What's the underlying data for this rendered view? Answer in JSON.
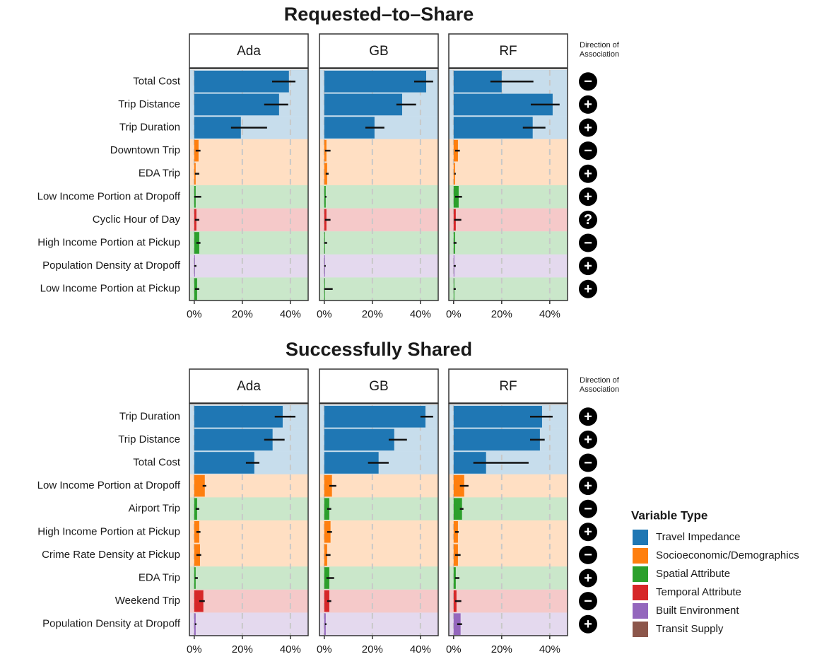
{
  "chart_data": [
    {
      "type": "bar",
      "title": "Requested–to–Share",
      "categories": [
        "Total Cost",
        "Trip Distance",
        "Trip Duration",
        "Downtown Trip",
        "EDA Trip",
        "Low Income Portion at Dropoff",
        "Cyclic Hour of Day",
        "High Income Portion at Pickup",
        "Population Density at Dropoff",
        "Low Income Portion at Pickup"
      ],
      "colors": [
        "#1f77b4",
        "#1f77b4",
        "#1f77b4",
        "#ff7f0e",
        "#ff7f0e",
        "#2ca02c",
        "#d62728",
        "#2ca02c",
        "#9467bd",
        "#2ca02c"
      ],
      "direction_label": [
        "Direction of",
        "Association"
      ],
      "direction": [
        "−",
        "+",
        "+",
        "−",
        "+",
        "+",
        "?",
        "−",
        "+",
        "+"
      ],
      "xlim": [
        -2,
        47.4
      ],
      "xticks": [
        {
          "value": 0,
          "label": "0%"
        },
        {
          "value": 20,
          "label": "20%"
        },
        {
          "value": 40,
          "label": "40%"
        }
      ],
      "series": [
        {
          "name": "Ada",
          "values": [
            39.4,
            35.3,
            19.4,
            1.8,
            0.6,
            0.6,
            0.9,
            2.1,
            0.3,
            1.2
          ],
          "ci": [
            [
              32.4,
              42.1
            ],
            [
              29.1,
              39.1
            ],
            [
              15.3,
              30.3
            ],
            [
              0.6,
              2.6
            ],
            [
              0.3,
              2.1
            ],
            [
              0,
              2.9
            ],
            [
              0.3,
              2.1
            ],
            [
              0.9,
              2.6
            ],
            [
              0,
              0.9
            ],
            [
              0.3,
              2.1
            ]
          ]
        },
        {
          "name": "GB",
          "values": [
            42.4,
            32.4,
            20.9,
            0.9,
            1.2,
            0.6,
            0.9,
            0.3,
            0.3,
            0.3
          ],
          "ci": [
            [
              37.4,
              45.3
            ],
            [
              30,
              38.2
            ],
            [
              17.1,
              25
            ],
            [
              0.3,
              2.6
            ],
            [
              0.6,
              1.8
            ],
            [
              0.3,
              0.9
            ],
            [
              0.3,
              2.6
            ],
            [
              0,
              1.2
            ],
            [
              0,
              0.6
            ],
            [
              0,
              3.5
            ]
          ]
        },
        {
          "name": "RF",
          "values": [
            20,
            41.2,
            32.9,
            1.8,
            0.6,
            2.1,
            0.9,
            0.6,
            0.3,
            0.3
          ],
          "ci": [
            [
              15.3,
              33.2
            ],
            [
              32.1,
              44.1
            ],
            [
              28.8,
              38.2
            ],
            [
              0.6,
              2.6
            ],
            [
              0.3,
              0.9
            ],
            [
              0.6,
              3.5
            ],
            [
              0.3,
              3.2
            ],
            [
              0,
              1.2
            ],
            [
              0,
              0.9
            ],
            [
              0,
              0.9
            ]
          ]
        }
      ]
    },
    {
      "type": "bar",
      "title": "Successfully Shared",
      "categories": [
        "Trip Duration",
        "Trip Distance",
        "Total Cost",
        "Low Income Portion at Dropoff",
        "Airport Trip",
        "High Income Portion at Pickup",
        "Crime Rate Density at Pickup",
        "EDA Trip",
        "Weekend Trip",
        "Population Density at Dropoff"
      ],
      "colors": [
        "#1f77b4",
        "#1f77b4",
        "#1f77b4",
        "#ff7f0e",
        "#2ca02c",
        "#ff7f0e",
        "#ff7f0e",
        "#2ca02c",
        "#d62728",
        "#9467bd"
      ],
      "direction_label": [
        "Direction of",
        "Association"
      ],
      "direction": [
        "+",
        "+",
        "−",
        "+",
        "−",
        "+",
        "−",
        "+",
        "−",
        "+"
      ],
      "xlim": [
        -2,
        47.4
      ],
      "xticks": [
        {
          "value": 0,
          "label": "0%"
        },
        {
          "value": 20,
          "label": "20%"
        },
        {
          "value": 40,
          "label": "40%"
        }
      ],
      "series": [
        {
          "name": "Ada",
          "values": [
            36.8,
            32.6,
            25,
            4.4,
            1.2,
            2.1,
            2.4,
            0.6,
            3.8,
            0.6
          ],
          "ci": [
            [
              33.5,
              42.1
            ],
            [
              29.1,
              37.6
            ],
            [
              21.5,
              27.1
            ],
            [
              3.5,
              5
            ],
            [
              0.6,
              2.1
            ],
            [
              0.9,
              2.6
            ],
            [
              0.9,
              2.9
            ],
            [
              0.3,
              1.5
            ],
            [
              2.1,
              4.4
            ],
            [
              0.3,
              0.9
            ]
          ]
        },
        {
          "name": "GB",
          "values": [
            42.1,
            29.1,
            22.6,
            3.2,
            2.1,
            2.6,
            1.2,
            2.1,
            2.1,
            0.6
          ],
          "ci": [
            [
              40,
              45.3
            ],
            [
              26.8,
              34.4
            ],
            [
              18.2,
              26.8
            ],
            [
              2.1,
              5
            ],
            [
              1.2,
              2.9
            ],
            [
              1.2,
              3.2
            ],
            [
              0.6,
              2.6
            ],
            [
              0.9,
              4.1
            ],
            [
              1.2,
              2.9
            ],
            [
              0.3,
              0.9
            ]
          ]
        },
        {
          "name": "RF",
          "values": [
            36.8,
            35.9,
            13.5,
            4.4,
            3.5,
            1.8,
            1.8,
            0.9,
            1.2,
            2.9
          ],
          "ci": [
            [
              31.8,
              41.2
            ],
            [
              31.8,
              37.9
            ],
            [
              8.2,
              31.2
            ],
            [
              2.6,
              6.2
            ],
            [
              2.6,
              4.1
            ],
            [
              0.6,
              2.1
            ],
            [
              0.6,
              2.9
            ],
            [
              0.6,
              2.4
            ],
            [
              0.6,
              3.2
            ],
            [
              1.5,
              3.5
            ]
          ]
        }
      ],
      "legend": {
        "title": "Variable Type",
        "items": [
          {
            "name": "Travel Impedance",
            "color": "#1f77b4"
          },
          {
            "name": "Socioeconomic/Demographics",
            "color": "#ff7f0e"
          },
          {
            "name": "Spatial Attribute",
            "color": "#2ca02c"
          },
          {
            "name": "Temporal Attribute",
            "color": "#d62728"
          },
          {
            "name": "Built Environment",
            "color": "#9467bd"
          },
          {
            "name": "Transit Supply",
            "color": "#8c564b"
          }
        ]
      }
    }
  ]
}
